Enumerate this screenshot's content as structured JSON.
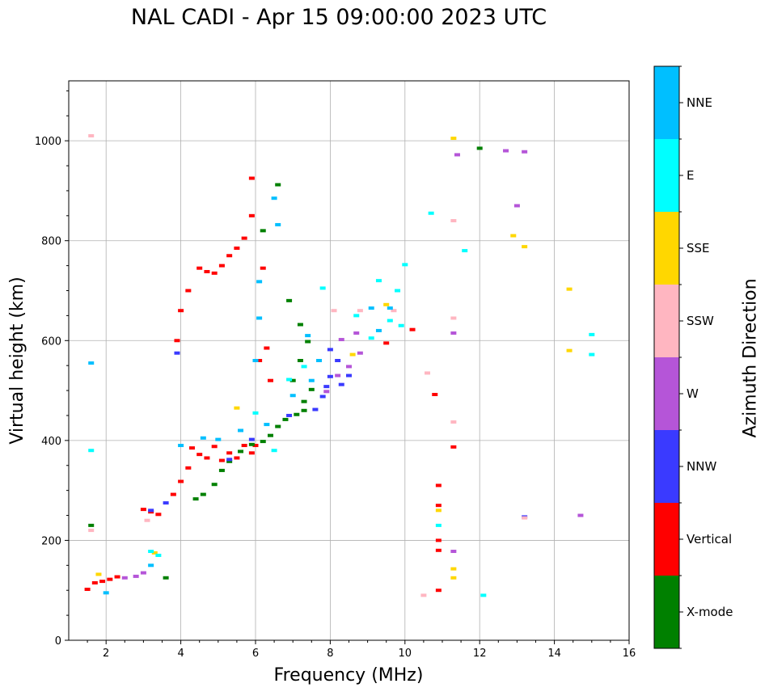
{
  "chart_data": {
    "type": "scatter",
    "title": "NAL CADI - Apr 15 09:00:00 2023 UTC",
    "xlabel": "Frequency (MHz)",
    "ylabel": "Virtual height (km)",
    "xlim": [
      1,
      16
    ],
    "ylim": [
      0,
      1120
    ],
    "x_ticks": [
      2,
      4,
      6,
      8,
      10,
      12,
      14,
      16
    ],
    "y_ticks": [
      0,
      200,
      400,
      600,
      800,
      1000
    ],
    "grid": true,
    "colorbar": {
      "label": "Azimuth Direction",
      "categories": [
        {
          "name": "X-mode",
          "color": "#008000"
        },
        {
          "name": "Vertical",
          "color": "#ff0000"
        },
        {
          "name": "NNW",
          "color": "#3a3aff"
        },
        {
          "name": "W",
          "color": "#b555d8"
        },
        {
          "name": "SSW",
          "color": "#ffb6c1"
        },
        {
          "name": "SSE",
          "color": "#ffd700"
        },
        {
          "name": "E",
          "color": "#00ffff"
        },
        {
          "name": "NNE",
          "color": "#00bfff"
        }
      ]
    },
    "series": [
      {
        "name": "Vertical",
        "points": [
          [
            1.5,
            102
          ],
          [
            1.7,
            115
          ],
          [
            1.9,
            118
          ],
          [
            2.1,
            122
          ],
          [
            2.3,
            127
          ],
          [
            3.0,
            262
          ],
          [
            3.2,
            257
          ],
          [
            3.4,
            252
          ],
          [
            3.8,
            292
          ],
          [
            4.0,
            318
          ],
          [
            4.2,
            345
          ],
          [
            4.3,
            385
          ],
          [
            4.5,
            372
          ],
          [
            4.7,
            365
          ],
          [
            4.9,
            388
          ],
          [
            5.1,
            360
          ],
          [
            5.3,
            375
          ],
          [
            5.5,
            365
          ],
          [
            5.7,
            390
          ],
          [
            5.9,
            375
          ],
          [
            6.0,
            390
          ],
          [
            4.0,
            660
          ],
          [
            4.2,
            700
          ],
          [
            4.5,
            745
          ],
          [
            4.7,
            738
          ],
          [
            4.9,
            735
          ],
          [
            5.1,
            750
          ],
          [
            5.3,
            770
          ],
          [
            5.5,
            785
          ],
          [
            5.7,
            805
          ],
          [
            5.9,
            850
          ],
          [
            3.9,
            600
          ],
          [
            6.2,
            745
          ],
          [
            6.3,
            585
          ],
          [
            6.1,
            560
          ],
          [
            6.4,
            520
          ],
          [
            10.9,
            100
          ],
          [
            10.9,
            180
          ],
          [
            10.9,
            200
          ],
          [
            10.9,
            270
          ],
          [
            10.9,
            310
          ],
          [
            11.3,
            387
          ],
          [
            10.8,
            492
          ],
          [
            10.2,
            622
          ],
          [
            9.5,
            595
          ],
          [
            5.9,
            925
          ]
        ]
      },
      {
        "name": "X-mode",
        "points": [
          [
            4.4,
            283
          ],
          [
            4.6,
            292
          ],
          [
            4.9,
            312
          ],
          [
            5.1,
            340
          ],
          [
            5.3,
            358
          ],
          [
            5.6,
            378
          ],
          [
            5.9,
            392
          ],
          [
            6.2,
            398
          ],
          [
            6.4,
            410
          ],
          [
            6.6,
            428
          ],
          [
            6.8,
            442
          ],
          [
            7.1,
            452
          ],
          [
            7.3,
            478
          ],
          [
            7.5,
            502
          ],
          [
            7.0,
            520
          ],
          [
            7.2,
            560
          ],
          [
            7.4,
            598
          ],
          [
            7.2,
            632
          ],
          [
            6.9,
            680
          ],
          [
            6.6,
            912
          ],
          [
            6.2,
            820
          ],
          [
            7.3,
            460
          ],
          [
            3.6,
            125
          ],
          [
            1.6,
            230
          ],
          [
            12.0,
            985
          ]
        ]
      },
      {
        "name": "NNW",
        "points": [
          [
            3.2,
            260
          ],
          [
            3.6,
            275
          ],
          [
            5.3,
            362
          ],
          [
            5.9,
            402
          ],
          [
            7.6,
            462
          ],
          [
            7.8,
            488
          ],
          [
            7.9,
            508
          ],
          [
            8.0,
            528
          ],
          [
            8.2,
            560
          ],
          [
            8.0,
            582
          ],
          [
            8.3,
            512
          ],
          [
            6.9,
            450
          ],
          [
            13.2,
            247
          ],
          [
            3.9,
            575
          ],
          [
            8.5,
            530
          ]
        ]
      },
      {
        "name": "W",
        "points": [
          [
            2.5,
            125
          ],
          [
            2.8,
            128
          ],
          [
            3.0,
            135
          ],
          [
            8.3,
            602
          ],
          [
            8.7,
            615
          ],
          [
            8.8,
            575
          ],
          [
            8.5,
            548
          ],
          [
            8.2,
            530
          ],
          [
            7.9,
            498
          ],
          [
            11.3,
            178
          ],
          [
            13.0,
            870
          ],
          [
            12.7,
            980
          ],
          [
            13.2,
            978
          ],
          [
            14.7,
            250
          ],
          [
            11.3,
            615
          ],
          [
            11.4,
            972
          ]
        ]
      },
      {
        "name": "SSW",
        "points": [
          [
            1.6,
            1010
          ],
          [
            1.6,
            220
          ],
          [
            3.1,
            240
          ],
          [
            8.1,
            660
          ],
          [
            9.7,
            660
          ],
          [
            10.5,
            90
          ],
          [
            10.6,
            535
          ],
          [
            11.3,
            645
          ],
          [
            11.3,
            840
          ],
          [
            11.3,
            437
          ],
          [
            13.2,
            245
          ],
          [
            8.8,
            660
          ]
        ]
      },
      {
        "name": "SSE",
        "points": [
          [
            1.8,
            132
          ],
          [
            3.3,
            175
          ],
          [
            5.5,
            465
          ],
          [
            8.6,
            572
          ],
          [
            9.5,
            672
          ],
          [
            11.3,
            125
          ],
          [
            11.3,
            143
          ],
          [
            11.3,
            1005
          ],
          [
            12.9,
            810
          ],
          [
            14.4,
            703
          ],
          [
            14.4,
            580
          ],
          [
            13.2,
            788
          ],
          [
            10.9,
            260
          ]
        ]
      },
      {
        "name": "E",
        "points": [
          [
            3.2,
            178
          ],
          [
            3.4,
            170
          ],
          [
            1.6,
            380
          ],
          [
            6.0,
            455
          ],
          [
            6.5,
            380
          ],
          [
            6.9,
            522
          ],
          [
            7.3,
            548
          ],
          [
            7.8,
            705
          ],
          [
            9.1,
            605
          ],
          [
            9.6,
            640
          ],
          [
            9.8,
            700
          ],
          [
            10.0,
            752
          ],
          [
            10.7,
            855
          ],
          [
            11.6,
            780
          ],
          [
            12.1,
            90
          ],
          [
            15.0,
            612
          ],
          [
            15.0,
            572
          ],
          [
            9.3,
            720
          ],
          [
            10.9,
            230
          ],
          [
            8.7,
            650
          ],
          [
            9.9,
            630
          ]
        ]
      },
      {
        "name": "NNE",
        "points": [
          [
            1.6,
            555
          ],
          [
            2.0,
            95
          ],
          [
            3.2,
            150
          ],
          [
            4.0,
            390
          ],
          [
            4.6,
            405
          ],
          [
            5.0,
            402
          ],
          [
            5.6,
            420
          ],
          [
            6.0,
            560
          ],
          [
            6.1,
            645
          ],
          [
            6.1,
            718
          ],
          [
            6.3,
            432
          ],
          [
            6.6,
            832
          ],
          [
            6.5,
            885
          ],
          [
            7.0,
            490
          ],
          [
            7.5,
            520
          ],
          [
            7.7,
            560
          ],
          [
            9.1,
            665
          ],
          [
            9.6,
            665
          ],
          [
            9.3,
            620
          ],
          [
            7.4,
            610
          ]
        ]
      }
    ]
  }
}
